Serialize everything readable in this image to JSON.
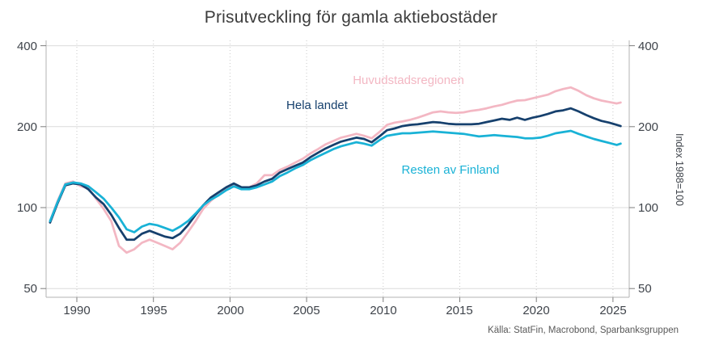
{
  "title": "Prisutveckling för gamla aktiebostäder",
  "source": "Källa: StatFin, Macrobond, Sparbanksgruppen",
  "right_axis_label": "Index 1988=100",
  "chart_data": {
    "type": "line",
    "title": "Prisutveckling för gamla aktiebostäder",
    "xlabel": "",
    "ylabel_right": "Index 1988=100",
    "y_scale": "log",
    "ylim": [
      50,
      400
    ],
    "x_range": [
      1988,
      2026
    ],
    "y_ticks": [
      400,
      200,
      100,
      50
    ],
    "x_ticks": [
      1990,
      1995,
      2000,
      2005,
      2010,
      2015,
      2020,
      2025
    ],
    "grid": {
      "horizontal": "solid",
      "vertical": "dotted"
    },
    "legend_position": "inline-labels",
    "x": [
      1988.25,
      1988.75,
      1989.25,
      1989.75,
      1990.25,
      1990.75,
      1991.25,
      1991.75,
      1992.25,
      1992.75,
      1993.25,
      1993.75,
      1994.25,
      1994.75,
      1995.25,
      1995.75,
      1996.25,
      1996.75,
      1997.25,
      1997.75,
      1998.25,
      1998.75,
      1999.25,
      1999.75,
      2000.25,
      2000.75,
      2001.25,
      2001.75,
      2002.25,
      2002.75,
      2003.25,
      2003.75,
      2004.25,
      2004.75,
      2005.25,
      2005.75,
      2006.25,
      2006.75,
      2007.25,
      2007.75,
      2008.25,
      2008.75,
      2009.25,
      2009.75,
      2010.25,
      2010.75,
      2011.25,
      2011.75,
      2012.25,
      2012.75,
      2013.25,
      2013.75,
      2014.25,
      2014.75,
      2015.25,
      2015.75,
      2016.25,
      2016.75,
      2017.25,
      2017.75,
      2018.25,
      2018.75,
      2019.25,
      2019.75,
      2020.25,
      2020.75,
      2021.25,
      2021.75,
      2022.25,
      2022.75,
      2023.25,
      2023.75,
      2024.25,
      2024.75,
      2025.25,
      2025.5
    ],
    "series": [
      {
        "name": "Huvudstadsregionen",
        "color": "#f3b7c3",
        "values": [
          89,
          106,
          123,
          125,
          120,
          118,
          108,
          99,
          89,
          72,
          68,
          70,
          74,
          76,
          74,
          72,
          70,
          74,
          81,
          89,
          99,
          106,
          112,
          117,
          122,
          118,
          119,
          123,
          132,
          132,
          138,
          142,
          147,
          152,
          159,
          165,
          172,
          177,
          182,
          185,
          188,
          185,
          181,
          191,
          203,
          207,
          209,
          212,
          216,
          221,
          226,
          228,
          226,
          225,
          226,
          229,
          231,
          234,
          238,
          241,
          246,
          250,
          251,
          255,
          259,
          263,
          271,
          276,
          280,
          272,
          262,
          255,
          250,
          247,
          244,
          246
        ]
      },
      {
        "name": "Hela landet",
        "color": "#16406d",
        "values": [
          88,
          104,
          121,
          123,
          122,
          117,
          109,
          103,
          94,
          84,
          76,
          76,
          80,
          82,
          80,
          78,
          77,
          80,
          86,
          94,
          102,
          109,
          114,
          119,
          123,
          119,
          119,
          121,
          125,
          128,
          135,
          139,
          143,
          147,
          154,
          160,
          166,
          171,
          176,
          179,
          182,
          180,
          175,
          184,
          194,
          197,
          201,
          203,
          204,
          206,
          208,
          207,
          205,
          204,
          204,
          204,
          205,
          208,
          211,
          214,
          212,
          216,
          212,
          216,
          219,
          223,
          228,
          230,
          234,
          228,
          221,
          215,
          210,
          207,
          203,
          201
        ]
      },
      {
        "name": "Resten av Finland",
        "color": "#19b2d6",
        "values": [
          89,
          105,
          122,
          124,
          123,
          120,
          114,
          108,
          100,
          92,
          83,
          81,
          85,
          87,
          86,
          84,
          82,
          85,
          89,
          95,
          102,
          107,
          111,
          116,
          120,
          117,
          117,
          119,
          122,
          125,
          131,
          135,
          140,
          144,
          150,
          155,
          160,
          165,
          169,
          172,
          175,
          173,
          170,
          178,
          185,
          187,
          189,
          189,
          190,
          191,
          192,
          191,
          190,
          189,
          188,
          186,
          184,
          185,
          186,
          185,
          184,
          183,
          181,
          181,
          182,
          185,
          189,
          191,
          193,
          188,
          184,
          180,
          177,
          174,
          171,
          173
        ]
      }
    ]
  },
  "colors": {
    "background": "#ffffff",
    "title_text": "#3c3c3c",
    "tick_text": "#3f444b",
    "source_text": "#595959",
    "grid_solid": "#dcdcdc",
    "grid_dotted": "#c9c9c9",
    "axis": "#b3b3b3"
  }
}
